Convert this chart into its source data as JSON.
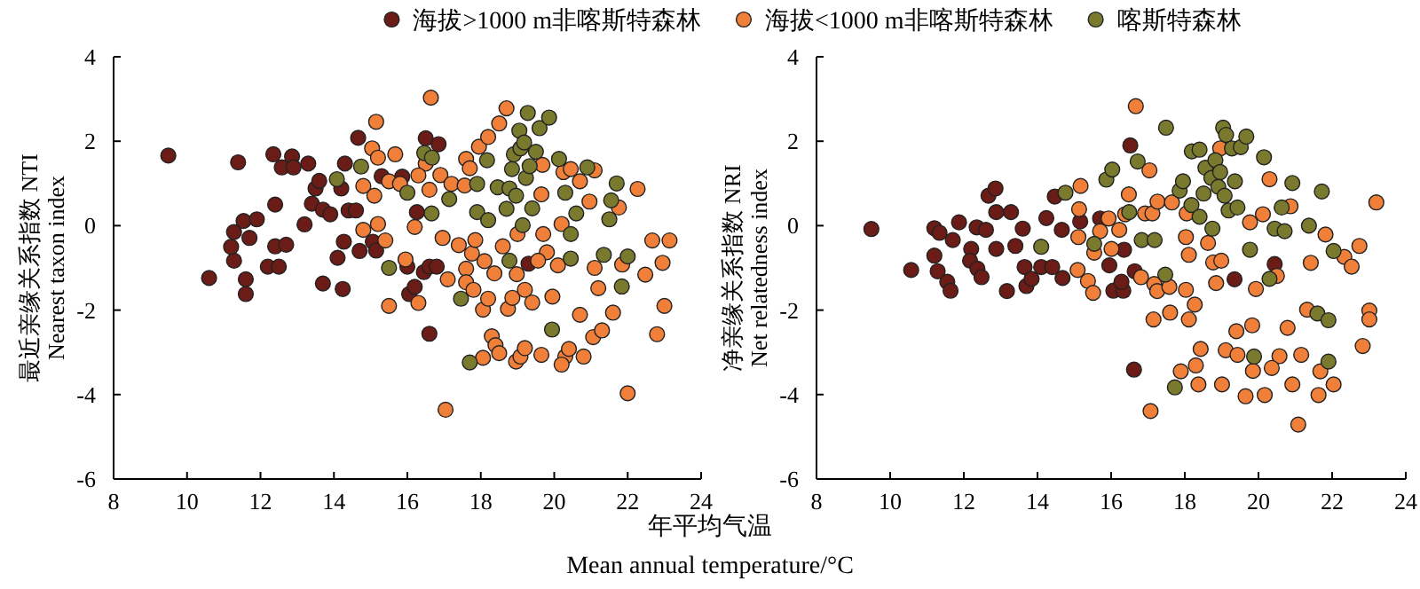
{
  "chart_data": [
    {
      "type": "scatter",
      "xlabel": "年平均气温\nMean annual temperature/°C",
      "ylabel": "最近亲缘关系指数 NTI\nNearest taxon index",
      "xlim": [
        8,
        24
      ],
      "ylim": [
        -6,
        4
      ],
      "xticks": [
        8,
        10,
        12,
        14,
        16,
        18,
        20,
        22,
        24
      ],
      "yticks": [
        -6,
        -4,
        -2,
        0,
        2,
        4
      ],
      "grid": false,
      "legend": "top",
      "marker": "circle",
      "series": [
        {
          "name": "海拔>1000 m非喀斯特森林",
          "color": "#6b1c16",
          "x": [
            9.49,
            10.6,
            11.39,
            11.28,
            11.28,
            11.2,
            11.6,
            11.6,
            11.54,
            11.7,
            11.9,
            12.2,
            12.35,
            12.4,
            12.4,
            12.5,
            12.58,
            12.7,
            12.86,
            12.9,
            13.2,
            13.3,
            13.4,
            13.5,
            13.6,
            13.7,
            13.9,
            13.7,
            14.1,
            14.2,
            14.27,
            14.24,
            14.3,
            14.4,
            14.6,
            14.66,
            14.7,
            15.06,
            15.15,
            15.3,
            15.86,
            16.0,
            16.05,
            16.2,
            16.45,
            16.5,
            16.6,
            16.6,
            16.85,
            16.8,
            16.26,
            19.3
          ],
          "values": [
            1.66,
            -1.24,
            1.5,
            -0.15,
            -0.83,
            -0.5,
            -1.27,
            -1.62,
            0.11,
            -0.29,
            0.15,
            -0.97,
            1.69,
            0.5,
            -0.49,
            -0.97,
            1.38,
            -0.45,
            1.64,
            1.38,
            0.03,
            1.47,
            0.52,
            0.88,
            1.06,
            0.38,
            0.27,
            -1.37,
            -0.76,
            0.88,
            -0.38,
            -1.5,
            1.47,
            0.36,
            0.36,
            2.08,
            -0.6,
            -0.38,
            -0.59,
            1.17,
            1.16,
            -0.97,
            -1.62,
            -1.45,
            -1.1,
            2.07,
            -0.97,
            -2.56,
            1.93,
            -0.97,
            0.32,
            -0.9
          ]
        },
        {
          "name": "海拔<1000 m非喀斯特森林",
          "color": "#f07f3a",
          "x": [
            16.64,
            15.15,
            18.7,
            18.5,
            17.95,
            18.2,
            17.6,
            17.7,
            16.5,
            15.67,
            15.04,
            15.2,
            14.8,
            15.1,
            15.5,
            15.8,
            16.2,
            16.3,
            16.6,
            16.9,
            17.2,
            17.56,
            14.8,
            15.2,
            15.4,
            15.5,
            15.95,
            16.3,
            17.1,
            16.96,
            17.4,
            17.6,
            17.76,
            17.6,
            17.8,
            17.85,
            18.1,
            18.06,
            18.2,
            18.06,
            18.3,
            18.4,
            18.5,
            17.04,
            18.37,
            18.6,
            18.74,
            18.86,
            18.96,
            19.08,
            19.2,
            18.98,
            19.2,
            19.4,
            19.65,
            19.65,
            19.7,
            19.8,
            19.95,
            20.1,
            20.2,
            20.25,
            20.3,
            20.2,
            20.4,
            20.45,
            20.7,
            20.7,
            20.8,
            20.96,
            21.06,
            21.1,
            21.2,
            21.3,
            21.6,
            21.76,
            21.85,
            22.0,
            22.27,
            22.48,
            22.67,
            22.8,
            22.95,
            23.0,
            23.14,
            21.1,
            19.68,
            19.0,
            19.56
          ],
          "values": [
            3.03,
            2.46,
            2.78,
            2.42,
            1.87,
            2.1,
            1.58,
            1.36,
            1.47,
            1.69,
            1.83,
            1.61,
            0.94,
            0.71,
            1.05,
            0.99,
            -0.03,
            1.19,
            0.85,
            1.2,
            0.99,
            0.95,
            -0.1,
            0.04,
            -0.35,
            -1.9,
            -0.8,
            -1.83,
            -1.27,
            -0.29,
            -0.46,
            -1.02,
            -0.66,
            -1.34,
            -1.52,
            -0.34,
            -0.84,
            -1.99,
            -1.73,
            -3.13,
            -2.62,
            -2.83,
            -3.02,
            -4.36,
            -1.13,
            -0.49,
            -1.97,
            -1.71,
            -3.22,
            -3.1,
            -2.9,
            -1.15,
            -1.52,
            -1.82,
            -3.06,
            0.74,
            -0.2,
            -0.63,
            -1.68,
            -0.94,
            0.04,
            1.27,
            -3.1,
            -3.29,
            -2.92,
            1.34,
            1.05,
            -2.11,
            -3.1,
            0.57,
            -2.64,
            -1.0,
            -1.48,
            -2.48,
            -2.06,
            0.43,
            -0.92,
            -3.97,
            0.87,
            -1.16,
            -0.35,
            -2.57,
            -0.88,
            -1.9,
            -0.35,
            1.31,
            1.44,
            -0.2,
            -0.83
          ]
        },
        {
          "name": "喀斯特森林",
          "color": "#7a7a2e",
          "x": [
            14.08,
            14.74,
            15.5,
            16.0,
            16.46,
            16.67,
            16.66,
            17.14,
            17.46,
            17.7,
            17.9,
            17.9,
            18.17,
            18.2,
            18.46,
            18.78,
            18.78,
            18.85,
            18.9,
            18.96,
            19.05,
            19.08,
            19.18,
            19.23,
            19.28,
            19.33,
            19.4,
            19.5,
            19.6,
            19.86,
            19.14,
            18.7,
            20.13,
            20.3,
            20.45,
            20.6,
            20.9,
            20.45,
            21.35,
            21.5,
            21.55,
            21.7,
            21.84,
            22.0,
            19.94
          ],
          "values": [
            1.1,
            1.4,
            -1.0,
            0.78,
            1.72,
            1.61,
            0.29,
            0.63,
            -1.73,
            -3.24,
            0.32,
            0.99,
            1.55,
            0.13,
            0.91,
            -0.83,
            0.88,
            1.34,
            1.69,
            0.71,
            2.25,
            1.83,
            1.97,
            1.13,
            2.67,
            1.41,
            0.41,
            1.75,
            2.31,
            2.56,
            0.01,
            0.4,
            1.58,
            0.78,
            -0.2,
            0.29,
            1.38,
            -0.78,
            -0.69,
            0.15,
            0.6,
            1.0,
            -1.44,
            -0.73,
            -2.46
          ]
        }
      ]
    },
    {
      "type": "scatter",
      "ylabel": "净亲缘关系指数 NRI\nNet relatedness index",
      "xlim": [
        8,
        24
      ],
      "ylim": [
        -6,
        4
      ],
      "xticks": [
        8,
        10,
        12,
        14,
        16,
        18,
        20,
        22,
        24
      ],
      "yticks": [
        -6,
        -4,
        -2,
        0,
        2,
        4
      ],
      "grid": false,
      "marker": "circle",
      "series": [
        {
          "color": "#6b1c16",
          "x": [
            9.49,
            10.57,
            11.2,
            11.34,
            11.2,
            11.29,
            11.55,
            11.64,
            11.7,
            11.87,
            12.2,
            12.17,
            12.37,
            12.48,
            12.35,
            12.6,
            12.67,
            12.86,
            12.88,
            12.88,
            13.17,
            13.28,
            13.4,
            13.6,
            13.65,
            13.7,
            13.84,
            14.1,
            14.24,
            14.4,
            14.47,
            14.66,
            14.68,
            15.16,
            15.7,
            15.95,
            16.06,
            16.33,
            16.28,
            16.35,
            16.52,
            16.64,
            16.62,
            19.35,
            20.44
          ],
          "values": [
            -0.08,
            -1.05,
            -0.06,
            -0.17,
            -0.71,
            -1.08,
            -1.33,
            -1.54,
            -0.34,
            0.08,
            -0.55,
            -0.83,
            -1.02,
            -1.22,
            -0.04,
            -0.1,
            0.71,
            0.88,
            0.32,
            -0.55,
            -1.55,
            0.32,
            -0.48,
            -0.07,
            -0.98,
            -1.43,
            -1.26,
            -0.98,
            0.18,
            -0.98,
            0.69,
            -0.1,
            -1.24,
            0.1,
            0.17,
            -0.94,
            -1.54,
            -1.54,
            -1.33,
            -0.57,
            1.9,
            -1.08,
            -3.41,
            -1.27,
            -0.91
          ]
        },
        {
          "color": "#f07f3a",
          "x": [
            16.67,
            17.04,
            15.17,
            15.13,
            15.11,
            15.09,
            15.37,
            15.51,
            15.54,
            15.7,
            15.93,
            16.01,
            16.22,
            16.38,
            16.48,
            16.81,
            16.92,
            17.12,
            17.17,
            17.25,
            17.15,
            17.07,
            17.26,
            17.58,
            17.6,
            17.65,
            17.89,
            18.03,
            18.11,
            18.03,
            18.11,
            18.27,
            18.3,
            18.37,
            18.63,
            18.77,
            18.85,
            18.96,
            18.99,
            19.01,
            19.11,
            19.4,
            19.43,
            19.65,
            19.77,
            19.83,
            19.93,
            20.12,
            20.17,
            20.3,
            20.5,
            20.57,
            20.79,
            20.87,
            20.92,
            21.08,
            21.16,
            21.32,
            21.42,
            21.63,
            21.68,
            21.82,
            22.04,
            22.33,
            22.53,
            22.74,
            22.83,
            23.01,
            23.01,
            23.2,
            19.85,
            20.36,
            18.05,
            18.43
          ],
          "values": [
            2.83,
            1.31,
            0.94,
            0.39,
            -0.27,
            -1.05,
            -1.31,
            -1.59,
            -0.64,
            -0.13,
            0.17,
            -0.55,
            -0.1,
            0.27,
            0.74,
            -1.22,
            0.29,
            0.29,
            -1.38,
            -1.55,
            -2.22,
            -4.39,
            0.57,
            -1.45,
            -2.06,
            0.55,
            -3.45,
            -0.27,
            -0.69,
            -1.52,
            -2.22,
            -1.87,
            -3.31,
            -3.76,
            -0.41,
            -0.87,
            -1.36,
            1.83,
            -0.83,
            -3.76,
            -2.95,
            -2.5,
            -3.06,
            -4.04,
            0.08,
            -2.36,
            -1.5,
            0.27,
            -4.01,
            1.1,
            -1.19,
            -3.09,
            -2.42,
            0.46,
            -3.76,
            -4.71,
            -3.06,
            -1.99,
            -0.88,
            -4.01,
            -3.45,
            -0.21,
            -3.76,
            -0.74,
            -0.97,
            -0.48,
            -2.85,
            -2.01,
            -2.22,
            0.55,
            -3.44,
            -3.37,
            0.29,
            -2.92
          ]
        },
        {
          "color": "#7a7a2e",
          "x": [
            14.76,
            14.1,
            15.54,
            15.87,
            16.03,
            16.49,
            16.72,
            16.83,
            17.18,
            17.49,
            17.47,
            17.73,
            17.86,
            17.95,
            18.19,
            18.4,
            18.18,
            18.4,
            18.51,
            18.56,
            18.72,
            18.75,
            18.83,
            18.91,
            18.96,
            19.04,
            19.08,
            19.12,
            19.19,
            19.28,
            19.36,
            19.43,
            19.52,
            19.67,
            19.77,
            19.88,
            20.15,
            20.3,
            20.44,
            20.63,
            20.71,
            20.92,
            21.37,
            21.6,
            21.72,
            21.9,
            21.9,
            22.04
          ],
          "values": [
            0.78,
            -0.5,
            -0.43,
            1.09,
            1.33,
            0.32,
            1.52,
            -0.34,
            -0.34,
            2.32,
            -1.16,
            -3.83,
            0.83,
            1.05,
            1.76,
            1.8,
            0.49,
            0.21,
            0.76,
            1.37,
            1.13,
            -0.07,
            1.55,
            0.92,
            1.27,
            2.32,
            0.71,
            2.15,
            0.36,
            1.83,
            1.05,
            0.43,
            1.86,
            2.11,
            -0.57,
            -3.1,
            1.62,
            -1.26,
            -0.07,
            0.43,
            -0.13,
            1.01,
            0.0,
            -2.08,
            0.81,
            -2.24,
            -3.22,
            -0.6
          ]
        }
      ]
    }
  ]
}
